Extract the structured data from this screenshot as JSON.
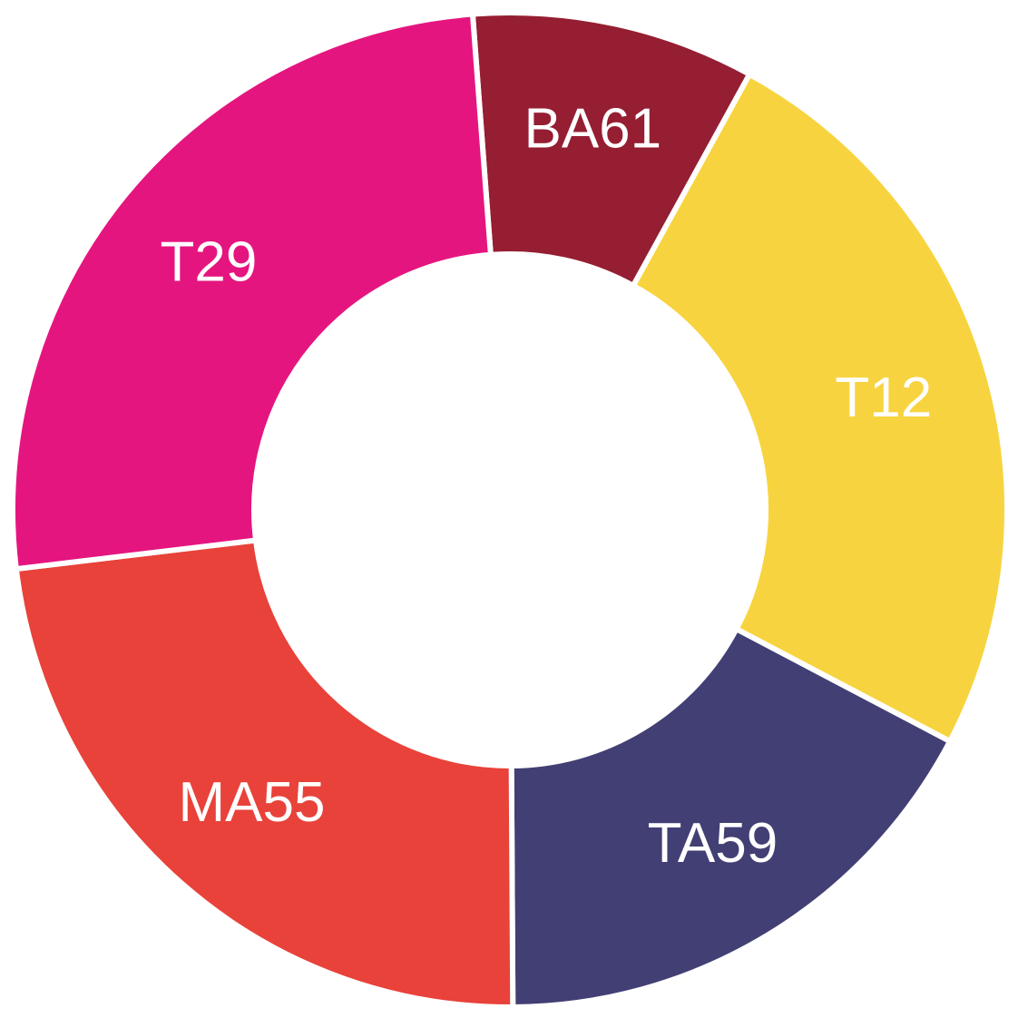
{
  "chart_data": {
    "type": "pie",
    "variant": "donut",
    "title": "",
    "start_angle_deg": -4.3,
    "direction": "clockwise",
    "slices": [
      {
        "label": "BA61",
        "value": 9.2,
        "color": "#951e32"
      },
      {
        "label": "T12",
        "value": 24.7,
        "color": "#f7d43f"
      },
      {
        "label": "TA59",
        "value": 17.2,
        "color": "#413f73"
      },
      {
        "label": "MA55",
        "value": 23.2,
        "color": "#e8423a"
      },
      {
        "label": "T29",
        "value": 25.7,
        "color": "#e5157f"
      }
    ]
  }
}
